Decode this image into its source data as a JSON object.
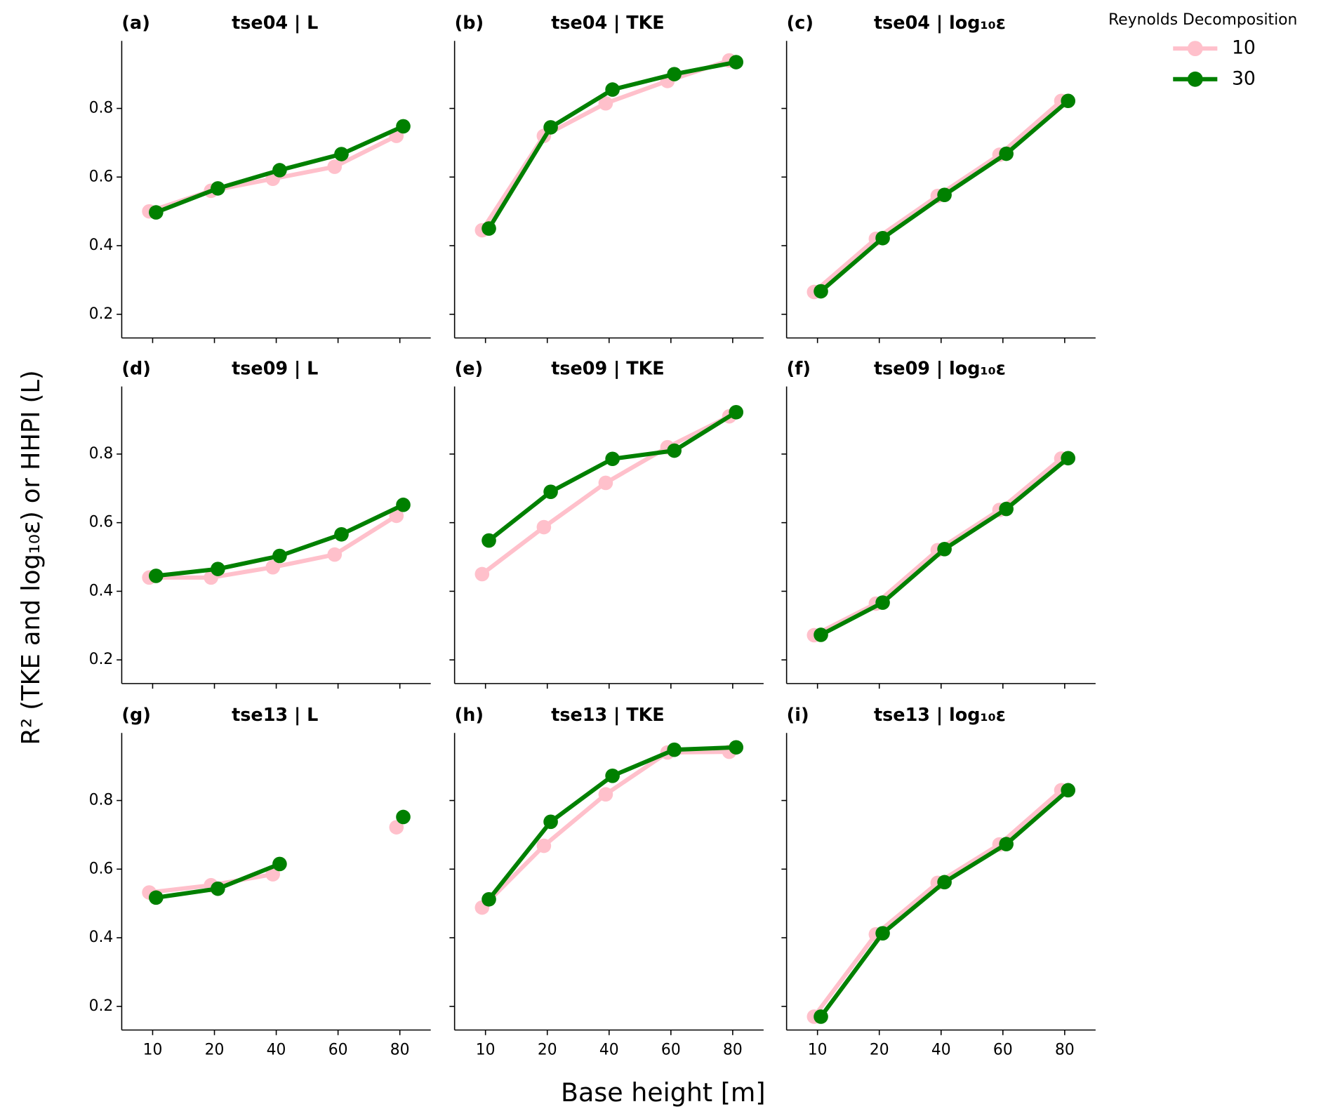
{
  "figure": {
    "xlabel": "Base height [m]",
    "ylabel": "R² (TKE and log₁₀ε) or HHPI (L)",
    "categories": [
      "10",
      "20",
      "40",
      "60",
      "80"
    ],
    "ylim": [
      0.131,
      0.997
    ],
    "yticks": [
      0.2,
      0.4,
      0.6,
      0.8
    ],
    "legend": {
      "title": "Reynolds Decomposition",
      "series": [
        {
          "name": "10",
          "color": "#ffc0cb"
        },
        {
          "name": "30",
          "color": "#008000"
        }
      ]
    }
  },
  "chart_data": [
    {
      "type": "line",
      "panel": "(a)",
      "title": "tse04 | L",
      "series": [
        {
          "values": [
            0.5,
            0.56,
            0.595,
            0.63,
            0.72
          ]
        },
        {
          "values": [
            0.497,
            0.567,
            0.62,
            0.667,
            0.748
          ]
        }
      ]
    },
    {
      "type": "line",
      "panel": "(b)",
      "title": "tse04 | TKE",
      "series": [
        {
          "values": [
            0.445,
            0.72,
            0.815,
            0.88,
            0.94
          ]
        },
        {
          "values": [
            0.45,
            0.745,
            0.855,
            0.9,
            0.935
          ]
        }
      ]
    },
    {
      "type": "line",
      "panel": "(c)",
      "title": "tse04 | log₁₀ε",
      "series": [
        {
          "values": [
            0.265,
            0.42,
            0.545,
            0.665,
            0.822
          ]
        },
        {
          "values": [
            0.267,
            0.422,
            0.548,
            0.668,
            0.822
          ]
        }
      ]
    },
    {
      "type": "line",
      "panel": "(d)",
      "title": "tse09 | L",
      "series": [
        {
          "values": [
            0.44,
            0.44,
            0.47,
            0.507,
            0.62
          ]
        },
        {
          "values": [
            0.445,
            0.465,
            0.503,
            0.566,
            0.652
          ]
        }
      ]
    },
    {
      "type": "line",
      "panel": "(e)",
      "title": "tse09 | TKE",
      "series": [
        {
          "values": [
            0.45,
            0.587,
            0.716,
            0.82,
            0.91
          ]
        },
        {
          "values": [
            0.548,
            0.69,
            0.786,
            0.81,
            0.922
          ]
        }
      ]
    },
    {
      "type": "line",
      "panel": "(f)",
      "title": "tse09 | log₁₀ε",
      "series": [
        {
          "values": [
            0.272,
            0.364,
            0.52,
            0.637,
            0.787
          ]
        },
        {
          "values": [
            0.273,
            0.367,
            0.523,
            0.64,
            0.788
          ]
        }
      ]
    },
    {
      "type": "line",
      "panel": "(g)",
      "title": "tse13 | L",
      "series": [
        {
          "values": [
            0.532,
            0.553,
            0.585,
            null,
            0.722
          ]
        },
        {
          "values": [
            0.517,
            0.543,
            0.615,
            null,
            0.752
          ]
        }
      ]
    },
    {
      "type": "line",
      "panel": "(h)",
      "title": "tse13 | TKE",
      "series": [
        {
          "values": [
            0.488,
            0.668,
            0.818,
            0.94,
            0.942
          ]
        },
        {
          "values": [
            0.512,
            0.738,
            0.872,
            0.948,
            0.955
          ]
        }
      ]
    },
    {
      "type": "line",
      "panel": "(i)",
      "title": "tse13 | log₁₀ε",
      "series": [
        {
          "values": [
            0.17,
            0.41,
            0.56,
            0.672,
            0.83
          ]
        },
        {
          "values": [
            0.17,
            0.413,
            0.562,
            0.673,
            0.83
          ]
        }
      ]
    }
  ]
}
